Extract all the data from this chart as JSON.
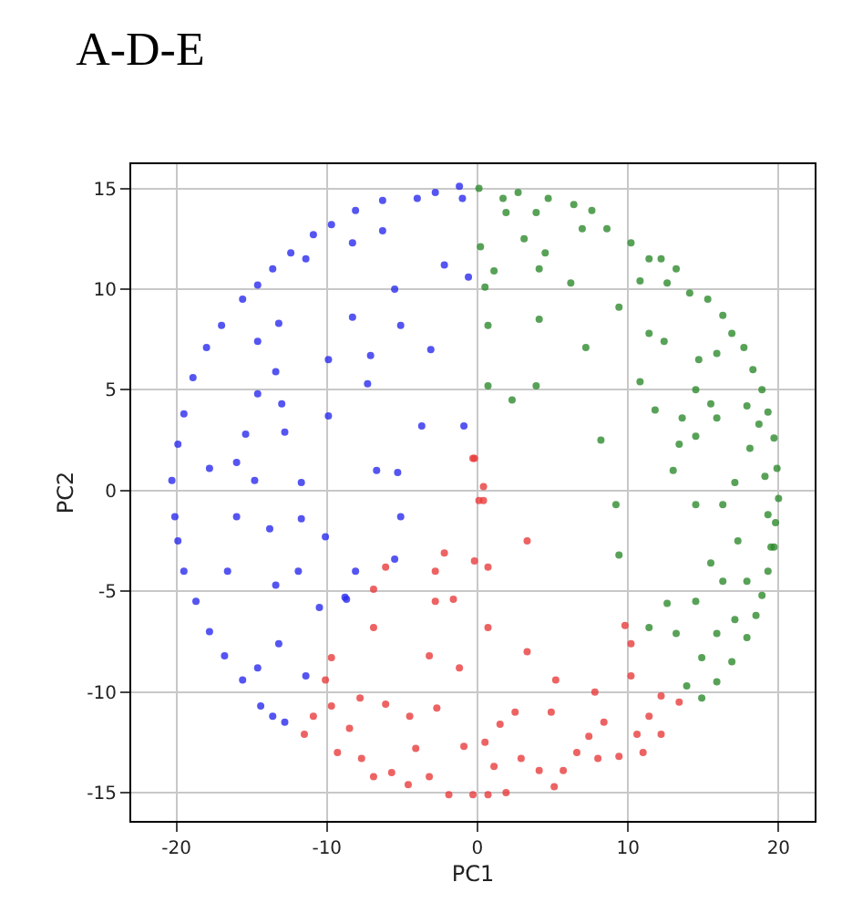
{
  "chart_data": {
    "type": "scatter",
    "title": "A-D-E",
    "xlabel": "PC1",
    "ylabel": "PC2",
    "xlim": [
      -23,
      22.4
    ],
    "ylim": [
      -16.4,
      16.2
    ],
    "xticks": [
      -20,
      -10,
      0,
      10,
      20
    ],
    "yticks": [
      -15,
      -10,
      -5,
      0,
      5,
      10,
      15
    ],
    "grid": true,
    "marker": "circle",
    "series": [
      {
        "color": "#2a2aee",
        "x": [
          -20.3,
          -20.1,
          -19.9,
          -19.5,
          -18.7,
          -17.8,
          -16.8,
          -15.6,
          -14.4,
          -13.6,
          -12.8,
          -19.9,
          -19.5,
          -18.9,
          -18,
          -17,
          -15.6,
          -14.6,
          -13.6,
          -12.4,
          -10.9,
          -9.7,
          -8.1,
          -6.3,
          -4,
          -2.8,
          -1.2,
          -1,
          -16,
          -17.8,
          -14.8,
          -11.7,
          -16,
          -13.8,
          -11.7,
          -10.1,
          -16.6,
          -11.9,
          -8.1,
          -13.4,
          -10.5,
          -8.8,
          -13.2,
          -11.4,
          -14.6,
          -13,
          -12.8,
          -15.4,
          -14.6,
          -13.4,
          -14.6,
          -13.2,
          -9.9,
          -9.9,
          -7.3,
          -7.1,
          -8.3,
          -5.5,
          -5.1,
          -3.1,
          -3.7,
          -0.9,
          -6.7,
          -5.3,
          -5.1,
          -5.5,
          -8.7,
          -2.2,
          -0.6,
          -8.3,
          -6.3,
          -11.4
        ],
        "values": [
          0.5,
          -1.3,
          -2.5,
          -4,
          -5.5,
          -7,
          -8.2,
          -9.4,
          -10.7,
          -11.2,
          -11.5,
          2.3,
          3.8,
          5.6,
          7.1,
          8.2,
          9.5,
          10.2,
          11,
          11.8,
          12.7,
          13.2,
          13.9,
          14.4,
          14.5,
          14.8,
          15.1,
          14.5,
          1.4,
          1.1,
          0.5,
          0.4,
          -1.3,
          -1.9,
          -1.4,
          -2.3,
          -4,
          -4,
          -4,
          -4.7,
          -5.8,
          -5.3,
          -7.6,
          -9.2,
          -8.8,
          4.3,
          2.9,
          2.8,
          4.8,
          5.9,
          7.4,
          8.3,
          6.5,
          3.7,
          5.3,
          6.7,
          8.6,
          10,
          8.2,
          7,
          3.2,
          3.2,
          1,
          0.9,
          -1.3,
          -3.4,
          -5.4,
          11.2,
          10.6,
          12.3,
          12.9,
          11.5
        ]
      },
      {
        "color": "#e83c3c",
        "x": [
          -11.5,
          -10.9,
          -10.1,
          -9.7,
          -6.9,
          -6.9,
          -6.1,
          -2.2,
          -2.8,
          -2.8,
          -1.6,
          -3.2,
          -1.2,
          -0.2,
          0.4,
          0.4,
          -9.7,
          -8.5,
          -9.3,
          -7.7,
          -6.9,
          -5.7,
          -4.5,
          -4.1,
          -3.2,
          -4.6,
          -6.1,
          -7.8,
          -2.7,
          -1.9,
          -0.9,
          -0.3,
          -0.3,
          0.1,
          -0.2,
          0.7,
          3.3,
          0.7,
          3.3,
          5.2,
          7.8,
          9.8,
          10.2,
          10.2,
          12.2,
          13.4,
          11.4,
          10.6,
          12.2,
          11,
          9.4,
          8,
          6.6,
          5.7,
          4.1,
          2.5,
          1.5,
          0.5,
          1.1,
          2.9,
          4.9,
          8.4,
          7.4,
          5.1,
          1.9,
          0.7
        ],
        "values": [
          -12.1,
          -11.2,
          -9.4,
          -8.3,
          -6.8,
          -4.9,
          -3.8,
          -3.1,
          -4,
          -5.5,
          -5.4,
          -8.2,
          -8.8,
          1.6,
          0.2,
          -0.5,
          -10.7,
          -11.8,
          -13,
          -13.3,
          -14.2,
          -14,
          -11.2,
          -12.8,
          -14.2,
          -14.6,
          -10.6,
          -10.3,
          -10.8,
          -15.1,
          -12.7,
          -15.1,
          1.6,
          -0.5,
          -3.5,
          -3.8,
          -2.5,
          -6.8,
          -8,
          -9.4,
          -10,
          -6.7,
          -7.6,
          -9.2,
          -10.2,
          -10.5,
          -11.2,
          -12.1,
          -12.1,
          -13,
          -13.2,
          -13.3,
          -13,
          -13.9,
          -13.9,
          -11,
          -11.6,
          -12.5,
          -13.7,
          -13.3,
          -11,
          -11.5,
          -12.2,
          -14.7,
          -15,
          -15.1
        ]
      },
      {
        "color": "#2e8b2e",
        "x": [
          0.1,
          1.7,
          2.7,
          4.7,
          1.9,
          3.9,
          6.4,
          7.6,
          6.96,
          8.6,
          0.2,
          3.1,
          4.5,
          1.1,
          0.5,
          4.1,
          6.2,
          10.2,
          11.4,
          12.2,
          13.2,
          10.8,
          12.6,
          14.1,
          15.3,
          16.3,
          16.9,
          17.7,
          18.3,
          18.9,
          19.3,
          19.7,
          19.9,
          20,
          19.8,
          19.7,
          19.3,
          18.9,
          18.5,
          17.9,
          16.9,
          15.9,
          14.9,
          13.9,
          0.7,
          4.1,
          7.2,
          0.7,
          3.9,
          2.3,
          8.2,
          9.2,
          9.4,
          11.4,
          12.4,
          9.4,
          10.8,
          11.8,
          13.6,
          13.4,
          13,
          14.5,
          16.3,
          17.1,
          18.1,
          15.5,
          14.5,
          14.7,
          15.9,
          17.3,
          15.5,
          16.3,
          17.9,
          12.6,
          14.5,
          13.2,
          15.9,
          14.9,
          11.4,
          17.1,
          15.9,
          14.5,
          17.9,
          18.7,
          19.1,
          19.3,
          19.5
        ],
        "values": [
          15,
          14.5,
          14.8,
          14.5,
          13.8,
          13.8,
          14.2,
          13.9,
          13,
          13,
          12.1,
          12.5,
          11.8,
          10.9,
          10.1,
          11,
          10.3,
          12.3,
          11.5,
          11.5,
          11,
          10.4,
          10.3,
          9.8,
          9.5,
          8.7,
          7.8,
          7.1,
          6,
          5,
          3.9,
          2.6,
          1.1,
          -0.4,
          -1.6,
          -2.8,
          -4,
          -5.2,
          -6.2,
          -7.3,
          -8.5,
          -9.5,
          -10.3,
          -9.7,
          8.2,
          8.5,
          7.1,
          5.2,
          5.2,
          4.5,
          2.5,
          -0.7,
          -3.2,
          7.8,
          7.4,
          9.1,
          5.4,
          4,
          3.6,
          2.3,
          1,
          -0.7,
          -0.7,
          0.4,
          2.1,
          4.3,
          5,
          6.5,
          6.8,
          -2.5,
          -3.6,
          -4.5,
          -4.5,
          -5.6,
          -5.5,
          -7.1,
          -7.1,
          -8.3,
          -6.8,
          -6.4,
          3.6,
          2.7,
          4.2,
          3.3,
          0.7,
          -1.2,
          -2.8
        ]
      }
    ]
  }
}
